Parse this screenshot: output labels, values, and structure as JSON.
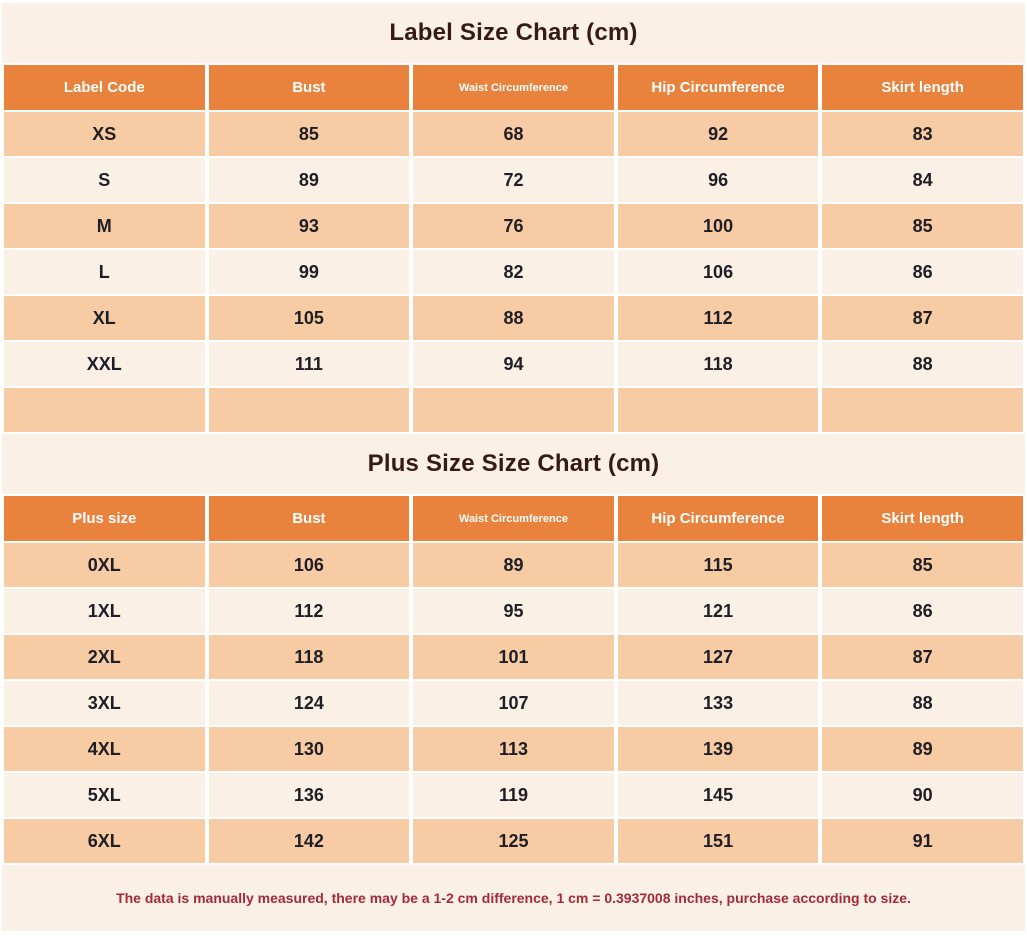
{
  "colors": {
    "separator_white": "#ffffff",
    "band_cream": "#fbf0e6",
    "header_orange": "#e8823c",
    "header_text": "#ffffff",
    "row_peach": "#f7cba4",
    "row_cream": "#fbf0e6",
    "cell_text": "#1e1e24",
    "title_text": "#351b12",
    "footer_text": "#a32a37"
  },
  "footer": {
    "note": "The data is manually measured, there may be a 1-2 cm difference, 1 cm = 0.3937008 inches, purchase according to size."
  },
  "chart_data": [
    {
      "type": "table",
      "title": "Label Size Chart (cm)",
      "columns": [
        "Label Code",
        "Bust",
        "Waist Circumference",
        "Hip Circumference",
        "Skirt length"
      ],
      "rows": [
        [
          "XS",
          "85",
          "68",
          "92",
          "83"
        ],
        [
          "S",
          "89",
          "72",
          "96",
          "84"
        ],
        [
          "M",
          "93",
          "76",
          "100",
          "85"
        ],
        [
          "L",
          "99",
          "82",
          "106",
          "86"
        ],
        [
          "XL",
          "105",
          "88",
          "112",
          "87"
        ],
        [
          "XXL",
          "111",
          "94",
          "118",
          "88"
        ],
        [
          "",
          "",
          "",
          "",
          ""
        ]
      ]
    },
    {
      "type": "table",
      "title": "Plus Size Size Chart (cm)",
      "columns": [
        "Plus size",
        "Bust",
        "Waist Circumference",
        "Hip Circumference",
        "Skirt length"
      ],
      "rows": [
        [
          "0XL",
          "106",
          "89",
          "115",
          "85"
        ],
        [
          "1XL",
          "112",
          "95",
          "121",
          "86"
        ],
        [
          "2XL",
          "118",
          "101",
          "127",
          "87"
        ],
        [
          "3XL",
          "124",
          "107",
          "133",
          "88"
        ],
        [
          "4XL",
          "130",
          "113",
          "139",
          "89"
        ],
        [
          "5XL",
          "136",
          "119",
          "145",
          "90"
        ],
        [
          "6XL",
          "142",
          "125",
          "151",
          "91"
        ]
      ]
    }
  ]
}
